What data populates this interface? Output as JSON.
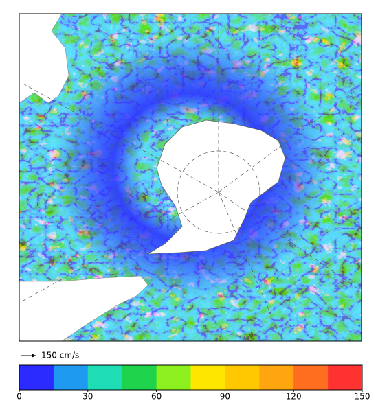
{
  "scale_arrow": {
    "label": "150 cm/s"
  },
  "colorbar": {
    "lim": [
      0,
      150
    ],
    "ticks": [
      0,
      30,
      60,
      90,
      120,
      150
    ],
    "colors": [
      "#2b2bff",
      "#1e9bf0",
      "#1edcb4",
      "#1ed24b",
      "#8cf01e",
      "#ffe600",
      "#ffc800",
      "#ffa50f",
      "#ff6e1e",
      "#ff3232"
    ]
  }
}
